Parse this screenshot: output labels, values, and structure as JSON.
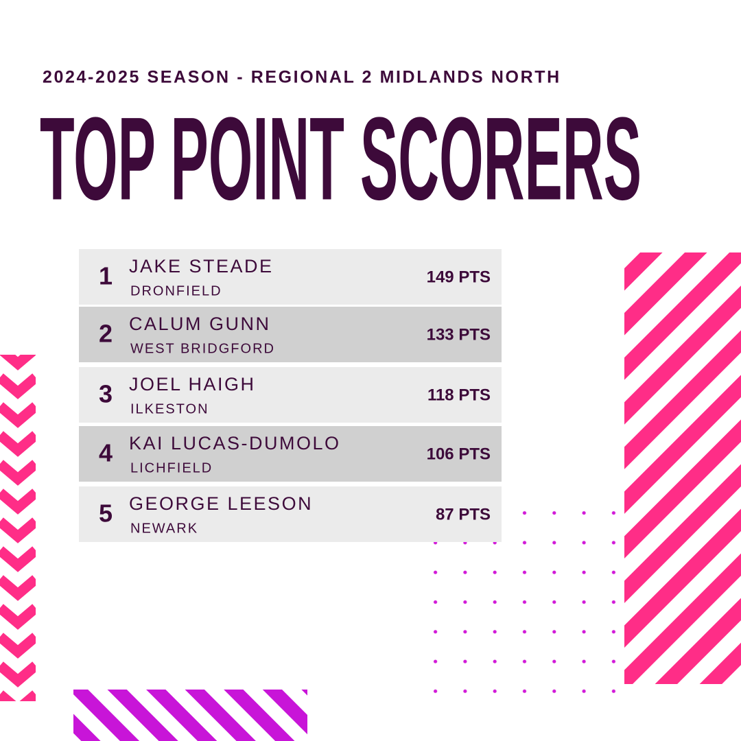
{
  "header": {
    "subtitle": "2024-2025 SEASON - REGIONAL 2 MIDLANDS NORTH",
    "title": "TOP POINT SCORERS"
  },
  "table": {
    "rows": [
      {
        "rank": 1,
        "name": "JAKE STEADE",
        "club": "DRONFIELD",
        "points": "149 PTS"
      },
      {
        "rank": 2,
        "name": "CALUM GUNN",
        "club": "WEST BRIDGFORD",
        "points": "133 PTS"
      },
      {
        "rank": 3,
        "name": "JOEL HAIGH",
        "club": "ILKESTON",
        "points": "118 PTS"
      },
      {
        "rank": 4,
        "name": "KAI LUCAS-DUMOLO",
        "club": "LICHFIELD",
        "points": "106 PTS"
      },
      {
        "rank": 5,
        "name": "GEORGE LEESON",
        "club": "NEWARK",
        "points": "87 PTS"
      }
    ]
  }
}
